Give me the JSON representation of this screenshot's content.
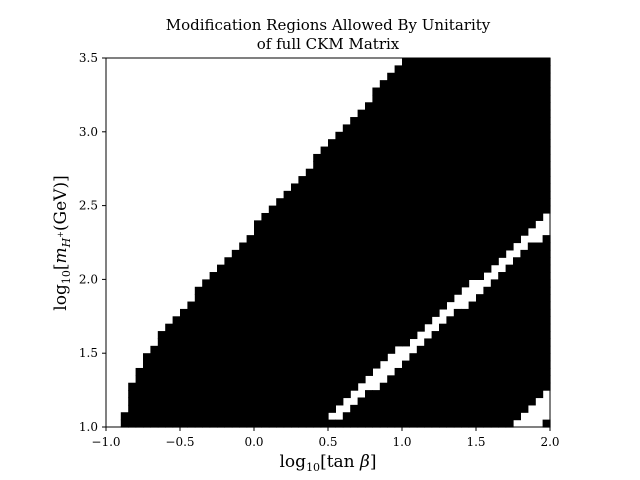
{
  "chart_data": {
    "type": "heatmap",
    "title_lines": [
      "Modification Regions Allowed By Unitarity",
      "of full CKM Matrix"
    ],
    "xlabel": "log10[tan β]",
    "ylabel": "log10[m_H+(GeV)]",
    "xlim": [
      -1.0,
      2.0
    ],
    "ylim": [
      1.0,
      3.5
    ],
    "xticks": [
      -1.0,
      -0.5,
      0.0,
      0.5,
      1.0,
      1.5,
      2.0
    ],
    "xtick_labels": [
      "−1.0",
      "−0.5",
      "0.0",
      "0.5",
      "1.0",
      "1.5",
      "2.0"
    ],
    "yticks": [
      1.0,
      1.5,
      2.0,
      2.5,
      3.0,
      3.5
    ],
    "ytick_labels": [
      "1.0",
      "1.5",
      "2.0",
      "2.5",
      "3.0",
      "3.5"
    ],
    "grid": false,
    "colors": {
      "allowed": "#ffffff",
      "excluded": "#000000"
    },
    "resolution": {
      "nx": 60,
      "ny": 50
    },
    "regions": [
      {
        "name": "excluded upper-left band boundary",
        "x": [
          -0.9,
          -0.8,
          -0.6,
          -0.4,
          -0.2,
          0.0,
          0.2,
          0.4,
          0.6,
          0.8,
          1.0
        ],
        "y": [
          1.0,
          1.38,
          1.68,
          1.9,
          2.13,
          2.35,
          2.57,
          2.8,
          3.02,
          3.25,
          3.5
        ]
      },
      {
        "name": "allowed lower stripe",
        "x": [
          0.4,
          0.6,
          0.8,
          1.0,
          1.2,
          1.4,
          1.6,
          1.8,
          2.0
        ],
        "y_low": [
          1.0,
          1.08,
          1.25,
          1.44,
          1.62,
          1.8,
          1.98,
          2.16,
          2.34
        ],
        "y_high": [
          1.0,
          1.18,
          1.36,
          1.55,
          1.73,
          1.91,
          2.09,
          2.27,
          2.45
        ]
      },
      {
        "name": "allowed bottom-right corner stripe",
        "x": [
          1.7,
          1.8,
          1.9,
          2.0
        ],
        "y_low": [
          1.0,
          1.0,
          1.0,
          1.05
        ],
        "y_high": [
          1.0,
          1.06,
          1.16,
          1.26
        ]
      }
    ]
  }
}
